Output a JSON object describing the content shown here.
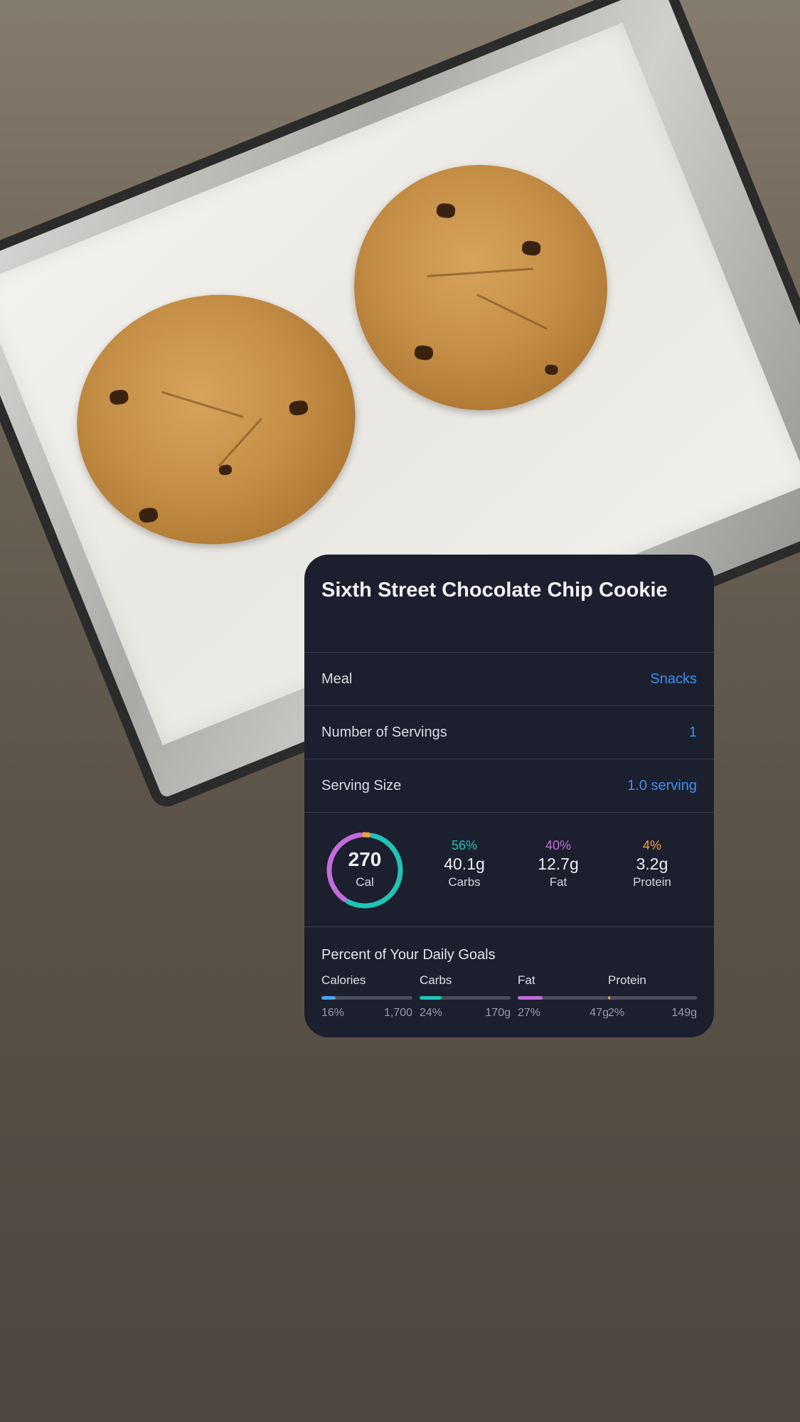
{
  "card": {
    "title": "Sixth Street Chocolate Chip Cookie",
    "rows": [
      {
        "label": "Meal",
        "value": "Snacks"
      },
      {
        "label": "Number of Servings",
        "value": "1"
      },
      {
        "label": "Serving Size",
        "value": "1.0 serving"
      }
    ],
    "calories": {
      "value": "270",
      "label": "Cal"
    },
    "macros": [
      {
        "pct": "56%",
        "grams": "40.1g",
        "name": "Carbs",
        "color": "#1fc4b4",
        "fraction": 0.56
      },
      {
        "pct": "40%",
        "grams": "12.7g",
        "name": "Fat",
        "color": "#c26cdc",
        "fraction": 0.4
      },
      {
        "pct": "4%",
        "grams": "3.2g",
        "name": "Protein",
        "color": "#f2a33a",
        "fraction": 0.04
      }
    ],
    "goals_title": "Percent of Your Daily Goals",
    "goals": [
      {
        "name": "Calories",
        "pct": "16%",
        "goal": "1,700",
        "fraction": 0.16,
        "color": "#4aa3f0"
      },
      {
        "name": "Carbs",
        "pct": "24%",
        "goal": "170g",
        "fraction": 0.24,
        "color": "#1fc4b4"
      },
      {
        "name": "Fat",
        "pct": "27%",
        "goal": "47g",
        "fraction": 0.27,
        "color": "#c26cdc"
      },
      {
        "name": "Protein",
        "pct": "2%",
        "goal": "149g",
        "fraction": 0.02,
        "color": "#f2a33a"
      }
    ]
  },
  "colors": {
    "card_bg": "#1c1f2e",
    "accent_link": "#3e8ff0"
  }
}
